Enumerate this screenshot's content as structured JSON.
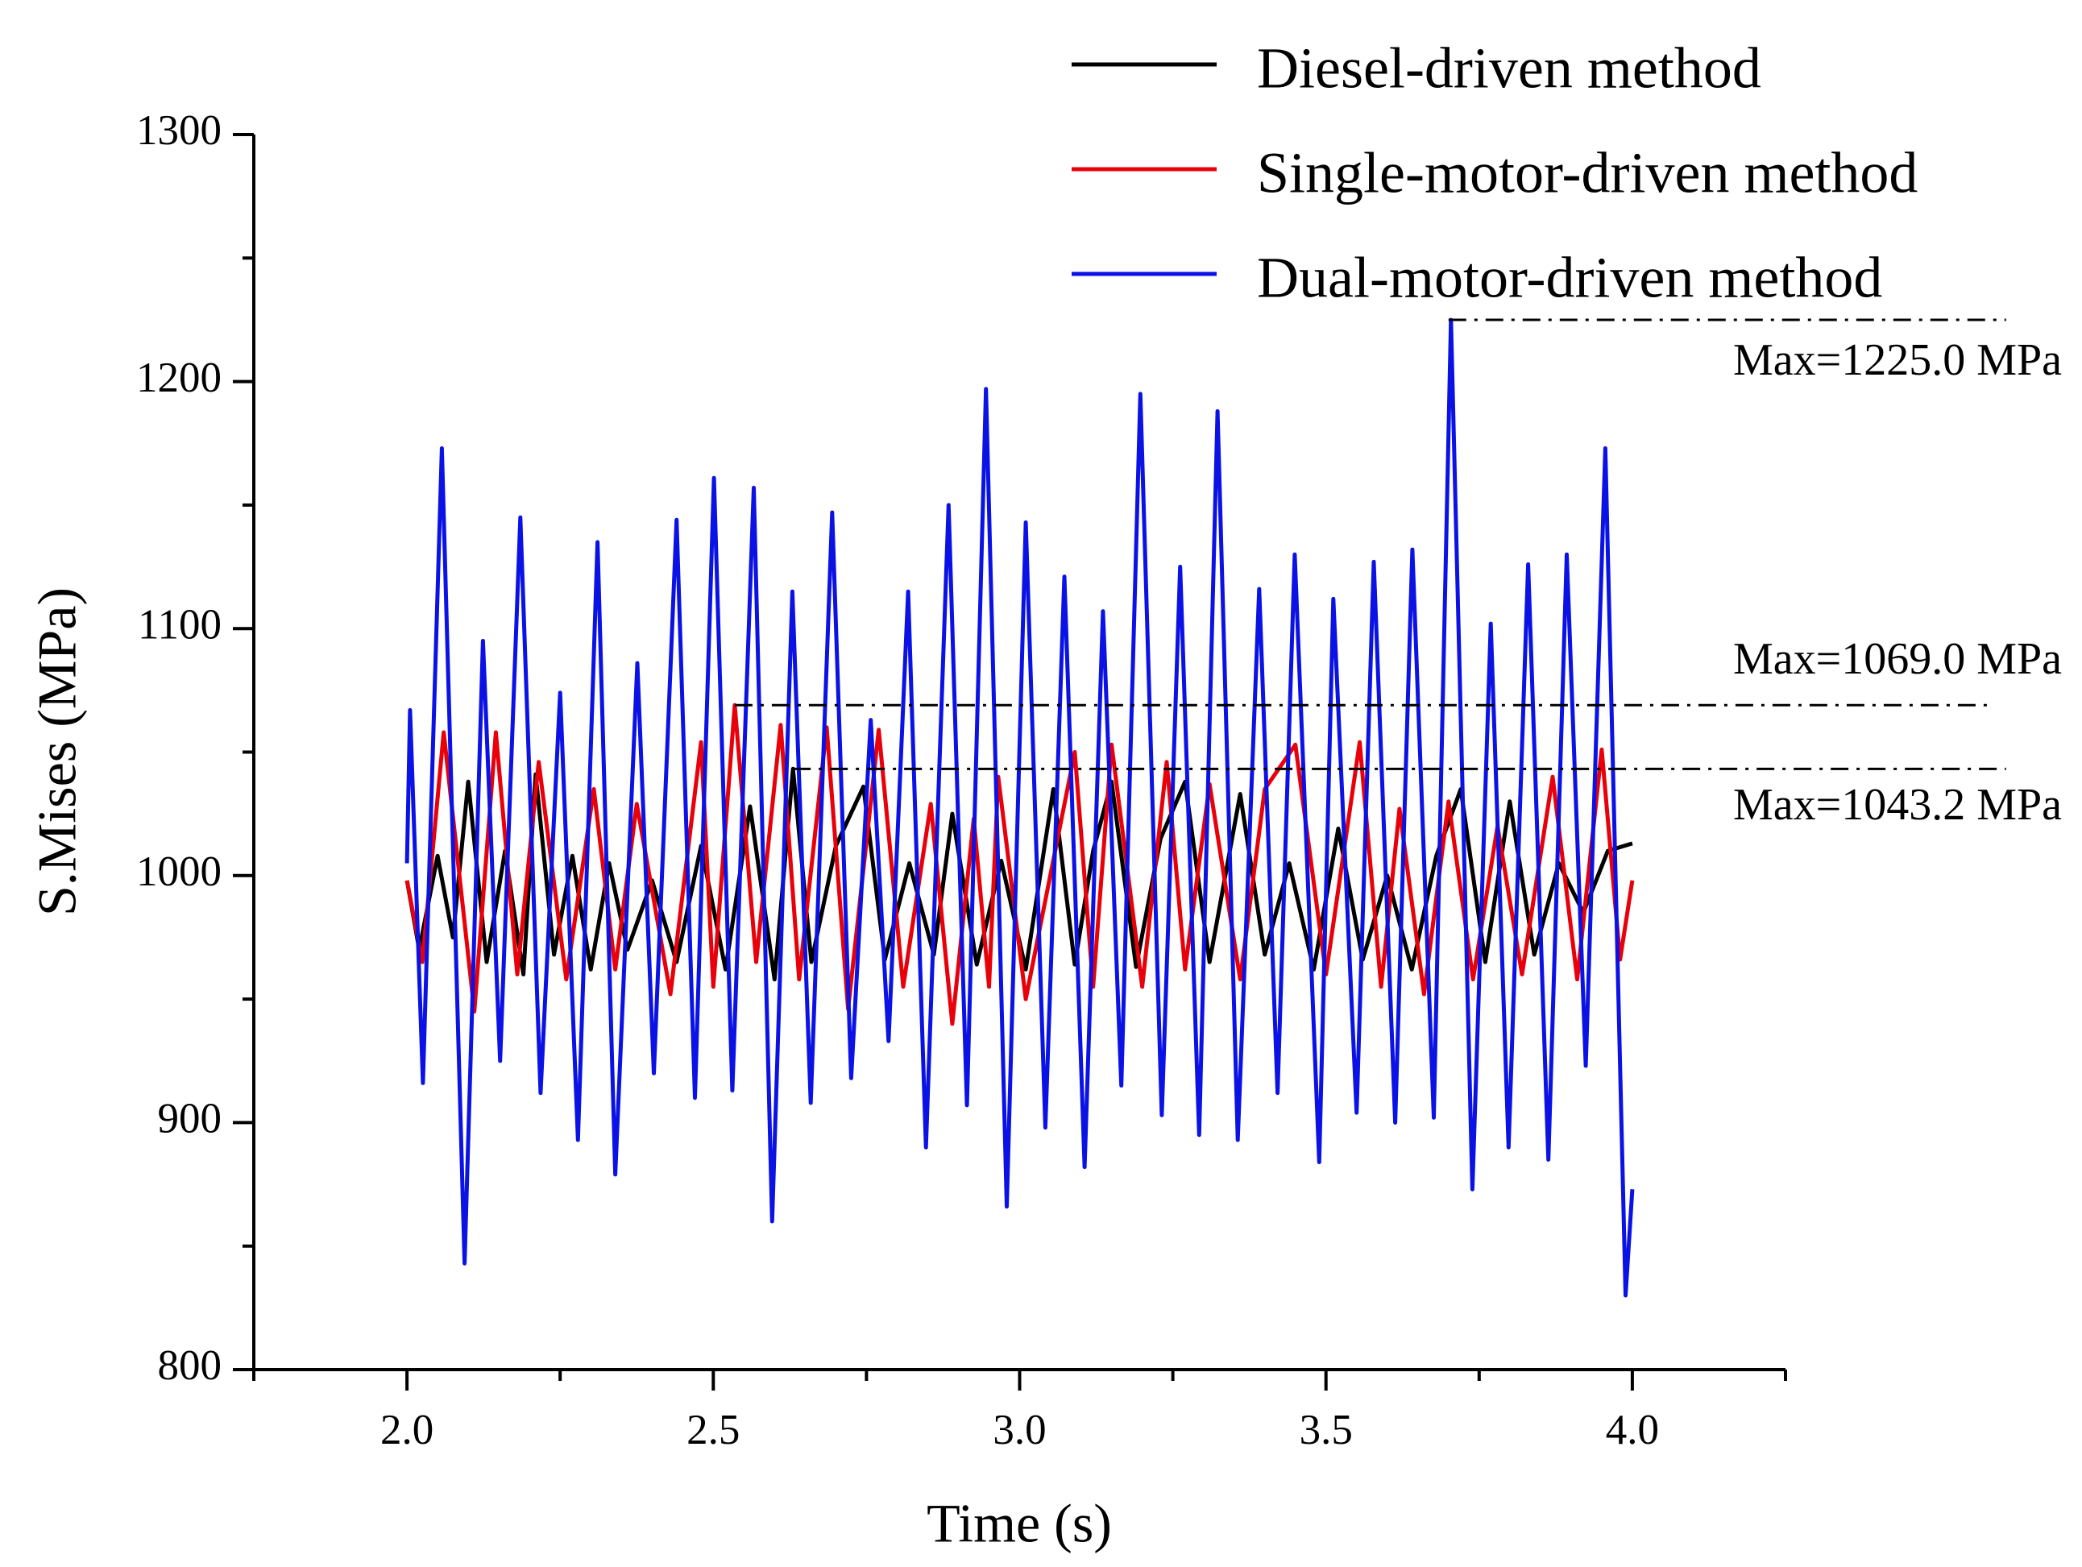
{
  "chart_data": {
    "type": "line",
    "xlabel": "Time (s)",
    "ylabel": "S.Mises (MPa)",
    "xlim": [
      1.75,
      4.25
    ],
    "ylim": [
      800,
      1300
    ],
    "xticks": [
      {
        "value": 2,
        "label": "2.0"
      },
      {
        "value": 2.5,
        "label": "2.5"
      },
      {
        "value": 3,
        "label": "3.0"
      },
      {
        "value": 3.5,
        "label": "3.5"
      },
      {
        "value": 4,
        "label": "4.0"
      }
    ],
    "xminorticks": [
      1.75,
      2.25,
      2.75,
      3.25,
      3.75,
      4.25
    ],
    "yticks": [
      800,
      900,
      1000,
      1100,
      1200,
      1300
    ],
    "yminorticks": [
      850,
      950,
      1050,
      1150,
      1250
    ],
    "legend": "top-right",
    "series": [
      {
        "name": "Diesel-driven method",
        "color": "#000000",
        "x": [
          2.0,
          2.02,
          2.05,
          2.075,
          2.1,
          2.13,
          2.16,
          2.19,
          2.21,
          2.24,
          2.27,
          2.3,
          2.33,
          2.36,
          2.4,
          2.44,
          2.48,
          2.52,
          2.56,
          2.6,
          2.63,
          2.66,
          2.7,
          2.745,
          2.78,
          2.82,
          2.86,
          2.89,
          2.93,
          2.97,
          3.01,
          3.055,
          3.09,
          3.12,
          3.15,
          3.19,
          3.23,
          3.27,
          3.31,
          3.36,
          3.4,
          3.44,
          3.48,
          3.52,
          3.56,
          3.6,
          3.64,
          3.68,
          3.72,
          3.76,
          3.8,
          3.84,
          3.88,
          3.92,
          3.96,
          4.0
        ],
        "values": [
          998,
          970,
          1008,
          975,
          1038,
          965,
          1010,
          960,
          1041,
          968,
          1008,
          962,
          1005,
          970,
          998,
          965,
          1012,
          962,
          1028,
          958,
          1043.2,
          965,
          1012,
          1036,
          966,
          1005,
          968,
          1025,
          964,
          1006,
          962,
          1035,
          964,
          1010,
          1038,
          963,
          1015,
          1038,
          965,
          1033,
          968,
          1005,
          962,
          1019,
          966,
          1000,
          962,
          1008,
          1035,
          965,
          1030,
          968,
          1005,
          985,
          1010,
          1013
        ]
      },
      {
        "name": "Single-motor-driven method",
        "color": "#e8000b",
        "x": [
          2.0,
          2.025,
          2.06,
          2.11,
          2.145,
          2.18,
          2.215,
          2.26,
          2.305,
          2.34,
          2.375,
          2.43,
          2.48,
          2.5,
          2.535,
          2.57,
          2.61,
          2.64,
          2.685,
          2.72,
          2.77,
          2.81,
          2.855,
          2.89,
          2.925,
          2.95,
          2.965,
          3.01,
          3.09,
          3.12,
          3.15,
          3.2,
          3.24,
          3.27,
          3.31,
          3.36,
          3.4,
          3.45,
          3.5,
          3.555,
          3.59,
          3.62,
          3.66,
          3.7,
          3.74,
          3.78,
          3.82,
          3.87,
          3.91,
          3.95,
          3.98,
          4.0
        ],
        "values": [
          998,
          965,
          1058,
          945,
          1058,
          960,
          1046,
          958,
          1035,
          962,
          1029,
          952,
          1054,
          955,
          1069,
          965,
          1061,
          958,
          1060,
          946,
          1059,
          955,
          1029,
          940,
          1023,
          955,
          1040,
          950,
          1050,
          955,
          1053,
          955,
          1046,
          962,
          1037,
          958,
          1035,
          1053,
          960,
          1054,
          955,
          1027,
          952,
          1030,
          958,
          1020,
          960,
          1040,
          958,
          1051,
          966,
          998
        ]
      },
      {
        "name": "Dual-motor-driven method",
        "color": "#0a12e6",
        "x": [
          2.0,
          2.005,
          2.026,
          2.057,
          2.094,
          2.124,
          2.152,
          2.185,
          2.218,
          2.25,
          2.279,
          2.311,
          2.34,
          2.376,
          2.403,
          2.44,
          2.47,
          2.501,
          2.531,
          2.566,
          2.596,
          2.629,
          2.659,
          2.694,
          2.725,
          2.757,
          2.786,
          2.818,
          2.847,
          2.884,
          2.914,
          2.945,
          2.979,
          3.01,
          3.042,
          3.073,
          3.106,
          3.136,
          3.166,
          3.197,
          3.232,
          3.262,
          3.293,
          3.323,
          3.356,
          3.391,
          3.421,
          3.449,
          3.489,
          3.512,
          3.55,
          3.578,
          3.613,
          3.641,
          3.676,
          3.704,
          3.739,
          3.769,
          3.798,
          3.83,
          3.863,
          3.893,
          3.924,
          3.956,
          3.989,
          4.0
        ],
        "values": [
          1005,
          1067,
          916,
          1173,
          843,
          1095,
          925,
          1145,
          912,
          1074,
          893,
          1135,
          879,
          1086,
          920,
          1144,
          910,
          1161,
          913,
          1157,
          860,
          1115,
          908,
          1147,
          918,
          1063,
          933,
          1115,
          890,
          1150,
          907,
          1197,
          866,
          1143,
          898,
          1121,
          882,
          1107,
          915,
          1195,
          903,
          1125,
          895,
          1188,
          893,
          1116,
          912,
          1130,
          884,
          1112,
          904,
          1127,
          900,
          1132,
          902,
          1225,
          873,
          1102,
          890,
          1126,
          885,
          1130,
          923,
          1173,
          830,
          873
        ]
      }
    ],
    "reference_lines": [
      {
        "y": 1225,
        "x": [
          3.7,
          4.61
        ],
        "label": "Max=1225.0 MPa"
      },
      {
        "y": 1069,
        "x": [
          2.535,
          4.59
        ],
        "label": "Max=1069.0 MPa"
      },
      {
        "y": 1043.2,
        "x": [
          2.63,
          4.61
        ],
        "label": "Max=1043.2 MPa"
      }
    ]
  }
}
